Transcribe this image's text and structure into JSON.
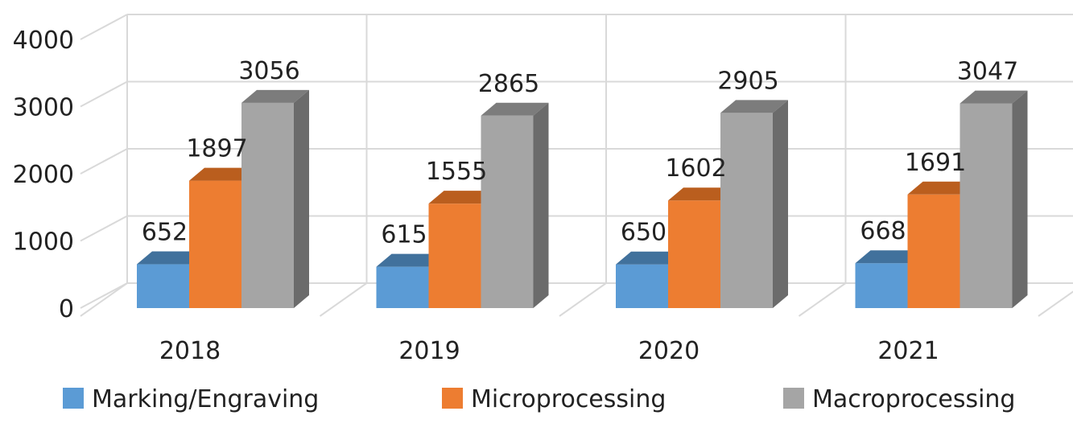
{
  "chart_data": {
    "type": "bar",
    "title": "",
    "xlabel": "",
    "ylabel": "",
    "ylim": [
      0,
      4000
    ],
    "yticks": [
      0,
      1000,
      2000,
      3000,
      4000
    ],
    "ytick_labels": [
      "0",
      "1000",
      "2000",
      "3000",
      "4000"
    ],
    "grid": true,
    "style": "3d-clustered-column",
    "categories": [
      "2018",
      "2019",
      "2020",
      "2021"
    ],
    "series": [
      {
        "name": "Marking/Engraving",
        "values": [
          652,
          615,
          650,
          668
        ],
        "color": "#5B9BD5",
        "top_color": "#41719C",
        "side_color": "#41719C"
      },
      {
        "name": "Microprocessing",
        "values": [
          1897,
          1555,
          1602,
          1691
        ],
        "color": "#ED7D31",
        "top_color": "#BA5E1E",
        "side_color": "#BA5E1E"
      },
      {
        "name": "Macroprocessing",
        "values": [
          3056,
          2865,
          2905,
          3047
        ],
        "color": "#A5A5A5",
        "top_color": "#7C7C7C",
        "side_color": "#6B6B6B"
      }
    ],
    "legend_position": "bottom"
  }
}
